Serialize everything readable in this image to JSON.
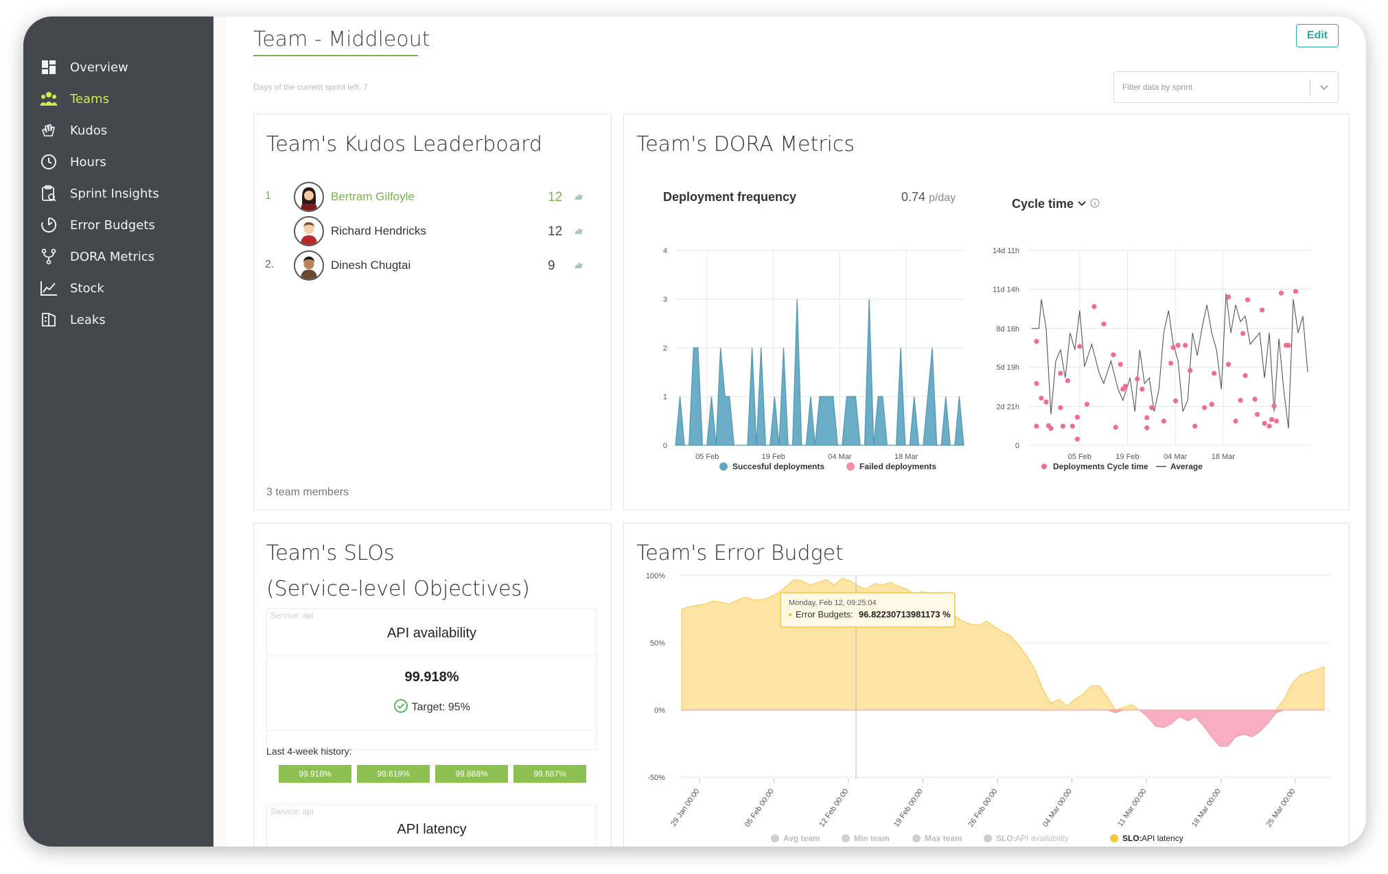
{
  "sidebar": {
    "items": [
      {
        "label": "Overview",
        "icon": "dashboard-icon"
      },
      {
        "label": "Teams",
        "icon": "team-icon",
        "active": true
      },
      {
        "label": "Kudos",
        "icon": "clap-icon"
      },
      {
        "label": "Hours",
        "icon": "clock-icon"
      },
      {
        "label": "Sprint Insights",
        "icon": "clipboard-icon"
      },
      {
        "label": "Error Budgets",
        "icon": "pie-timer-icon"
      },
      {
        "label": "DORA Metrics",
        "icon": "branch-icon"
      },
      {
        "label": "Stock",
        "icon": "line-chart-icon"
      },
      {
        "label": "Leaks",
        "icon": "leak-icon"
      }
    ]
  },
  "header": {
    "title": "Team - Middleout",
    "sprint_left": "Days of the current sprint left: 7",
    "edit_label": "Edit",
    "filter_placeholder": "Filter data by sprint"
  },
  "leaderboard": {
    "title": "Team's Kudos Leaderboard",
    "rows": [
      {
        "rank": "1",
        "name": "Bertram Gilfoyle",
        "count": "12"
      },
      {
        "rank": "",
        "name": "Richard Hendricks",
        "count": "12"
      },
      {
        "rank": "2.",
        "name": "Dinesh Chugtai",
        "count": "9"
      }
    ],
    "members": "3 team members"
  },
  "dora": {
    "title": "Team's DORA Metrics",
    "deploy": {
      "title": "Deployment frequency",
      "value": "0.74",
      "unit": "p/day"
    },
    "cycle": {
      "title": "Cycle time"
    }
  },
  "chart_data": [
    {
      "type": "area",
      "title": "Deployment frequency",
      "x_ticks": [
        "05 Feb",
        "19 Feb",
        "04 Mar",
        "18 Mar"
      ],
      "y_ticks": [
        "0",
        "1",
        "2",
        "3",
        "4"
      ],
      "ylim": [
        0,
        4
      ],
      "series": [
        {
          "name": "Succesful deployments",
          "color": "#5da8c4",
          "values": [
            0,
            1,
            0,
            0,
            2,
            2,
            0,
            0,
            1,
            0,
            2,
            1,
            1,
            0,
            0,
            0,
            0,
            2,
            0,
            2,
            0,
            0,
            1,
            0,
            2,
            0,
            0,
            3,
            0,
            0,
            1,
            0,
            1,
            1,
            1,
            1,
            0,
            0,
            1,
            1,
            1,
            0,
            0,
            3,
            0,
            1,
            1,
            0,
            0,
            0,
            2,
            0,
            0,
            1,
            0,
            0,
            1,
            2,
            0,
            0,
            1,
            0,
            0,
            1,
            0
          ]
        },
        {
          "name": "Failed deployments",
          "color": "#f48fa7",
          "values": []
        }
      ],
      "legend": "bottom"
    },
    {
      "type": "scatter",
      "title": "Cycle time",
      "x_ticks": [
        "05 Feb",
        "19 Feb",
        "04 Mar",
        "18 Mar"
      ],
      "y_ticks": [
        "0",
        "2d 21h",
        "5d 19h",
        "8d 16h",
        "11d 14h",
        "14d 11h"
      ],
      "y_tick_hours": [
        0,
        69,
        139,
        208,
        278,
        347
      ],
      "ylim_hours": [
        0,
        347
      ],
      "series": [
        {
          "name": "Deployments Cycle time",
          "color": "#f06d8f",
          "points": [
            [
              0.02,
              185
            ],
            [
              0.02,
              110
            ],
            [
              0.02,
              34
            ],
            [
              0.04,
              84
            ],
            [
              0.06,
              77
            ],
            [
              0.07,
              35
            ],
            [
              0.08,
              30
            ],
            [
              0.12,
              128
            ],
            [
              0.12,
              67
            ],
            [
              0.13,
              34
            ],
            [
              0.15,
              115
            ],
            [
              0.17,
              34
            ],
            [
              0.19,
              50
            ],
            [
              0.19,
              11
            ],
            [
              0.2,
              176
            ],
            [
              0.23,
              73
            ],
            [
              0.26,
              247
            ],
            [
              0.3,
              216
            ],
            [
              0.34,
              161
            ],
            [
              0.35,
              32
            ],
            [
              0.37,
              144
            ],
            [
              0.38,
              100
            ],
            [
              0.39,
              105
            ],
            [
              0.44,
              118
            ],
            [
              0.46,
              100
            ],
            [
              0.48,
              31
            ],
            [
              0.48,
              49
            ],
            [
              0.5,
              67
            ],
            [
              0.55,
              43
            ],
            [
              0.58,
              146
            ],
            [
              0.59,
              174
            ],
            [
              0.6,
              79
            ],
            [
              0.61,
              178
            ],
            [
              0.64,
              178
            ],
            [
              0.66,
              133
            ],
            [
              0.68,
              34
            ],
            [
              0.72,
              67
            ],
            [
              0.75,
              73
            ],
            [
              0.76,
              128
            ],
            [
              0.82,
              264
            ],
            [
              0.82,
              144
            ],
            [
              0.85,
              43
            ],
            [
              0.87,
              80
            ],
            [
              0.88,
              199
            ],
            [
              0.89,
              124
            ],
            [
              0.9,
              259
            ],
            [
              0.93,
              82
            ],
            [
              0.94,
              55
            ],
            [
              0.96,
              241
            ],
            [
              0.97,
              39
            ],
            [
              0.99,
              34
            ],
            [
              1.0,
              46
            ],
            [
              1.01,
              70
            ],
            [
              1.02,
              43
            ],
            [
              1.04,
              271
            ],
            [
              1.06,
              178
            ],
            [
              1.07,
              178
            ],
            [
              1.1,
              274
            ]
          ]
        },
        {
          "name": "Average",
          "color": "#444",
          "points": [
            [
              0.0,
              208
            ],
            [
              0.03,
              208
            ],
            [
              0.04,
              260
            ],
            [
              0.06,
              208
            ],
            [
              0.08,
              55
            ],
            [
              0.1,
              150
            ],
            [
              0.12,
              170
            ],
            [
              0.14,
              120
            ],
            [
              0.16,
              200
            ],
            [
              0.18,
              170
            ],
            [
              0.2,
              240
            ],
            [
              0.22,
              140
            ],
            [
              0.25,
              180
            ],
            [
              0.28,
              130
            ],
            [
              0.3,
              110
            ],
            [
              0.33,
              150
            ],
            [
              0.36,
              100
            ],
            [
              0.38,
              80
            ],
            [
              0.41,
              120
            ],
            [
              0.43,
              60
            ],
            [
              0.45,
              170
            ],
            [
              0.47,
              110
            ],
            [
              0.49,
              120
            ],
            [
              0.51,
              60
            ],
            [
              0.53,
              100
            ],
            [
              0.55,
              200
            ],
            [
              0.57,
              240
            ],
            [
              0.59,
              180
            ],
            [
              0.61,
              150
            ],
            [
              0.63,
              60
            ],
            [
              0.65,
              80
            ],
            [
              0.67,
              200
            ],
            [
              0.69,
              160
            ],
            [
              0.71,
              210
            ],
            [
              0.73,
              250
            ],
            [
              0.75,
              200
            ],
            [
              0.77,
              170
            ],
            [
              0.79,
              100
            ],
            [
              0.81,
              270
            ],
            [
              0.83,
              200
            ],
            [
              0.85,
              250
            ],
            [
              0.87,
              220
            ],
            [
              0.89,
              230
            ],
            [
              0.91,
              180
            ],
            [
              0.93,
              190
            ],
            [
              0.95,
              200
            ],
            [
              0.97,
              120
            ],
            [
              0.99,
              200
            ],
            [
              1.01,
              60
            ],
            [
              1.03,
              190
            ],
            [
              1.05,
              100
            ],
            [
              1.07,
              30
            ],
            [
              1.09,
              260
            ],
            [
              1.11,
              200
            ],
            [
              1.13,
              230
            ],
            [
              1.15,
              130
            ]
          ]
        }
      ],
      "legend": "bottom"
    },
    {
      "type": "area",
      "title": "Team's Error Budget",
      "x_ticks": [
        "29 Jan 00:00",
        "05 Feb 00:00",
        "12 Feb 00:00",
        "19 Feb 00:00",
        "26 Feb 00:00",
        "04 Mar 00:00",
        "11 Mar 00:00",
        "18 Mar 00:00",
        "25 Mar 00:00"
      ],
      "y_ticks": [
        "-50%",
        "0%",
        "50%",
        "100%"
      ],
      "ylim": [
        -50,
        100
      ],
      "series": [
        {
          "name": "SLO: API latency",
          "service": "Service: api",
          "color": "#f5c842",
          "values": [
            75,
            77,
            78,
            79,
            81,
            80,
            79,
            82,
            84,
            82,
            82,
            84,
            87,
            92,
            97,
            96,
            93,
            95,
            97,
            93,
            98,
            96,
            92,
            90,
            94,
            93,
            95,
            92,
            90,
            86,
            88,
            83,
            85,
            78,
            70,
            66,
            64,
            63,
            66,
            62,
            58,
            55,
            48,
            40,
            30,
            15,
            5,
            8,
            3,
            8,
            12,
            18,
            18,
            10,
            -2,
            2,
            4,
            0,
            -5,
            -12,
            -13,
            -10,
            -5,
            -8,
            -5,
            -12,
            -20,
            -27,
            -27,
            -20,
            -18,
            -20,
            -16,
            -10,
            -2,
            8,
            20,
            26,
            28,
            30,
            32
          ]
        }
      ],
      "legend_entries": [
        {
          "name": "Avg team",
          "active": false
        },
        {
          "name": "Min team",
          "active": false
        },
        {
          "name": "Max team",
          "active": false
        },
        {
          "name": "SLO: API availability",
          "service": "Service: api",
          "active": false
        },
        {
          "name": "SLO: API latency",
          "service": "Service: api",
          "active": true
        }
      ],
      "tooltip": {
        "date": "Monday, Feb 12, 09:25:04",
        "label": "Error Budgets:",
        "value": "96.82230713981173 %"
      }
    }
  ],
  "dora_legend": {
    "success": "Succesful deployments",
    "failed": "Failed deployments",
    "cycle": "Deployments Cycle time",
    "average": "Average"
  },
  "slos": {
    "title_line1": "Team's SLOs",
    "title_line2": "(Service-level Objectives)",
    "items": [
      {
        "service": "Service: api",
        "name": "API availability",
        "value": "99.918%",
        "target": "Target: 95%",
        "history_label": "Last 4-week history:",
        "history": [
          "99.918%",
          "99.619%",
          "99.868%",
          "99.687%"
        ]
      },
      {
        "service": "Service: api",
        "name": "API latency"
      }
    ]
  },
  "error_budget": {
    "title": "Team's Error Budget",
    "tooltip_date": "Monday, Feb 12, 09:25:04",
    "tooltip_label": "Error Budgets:",
    "tooltip_value": "96.82230713981173 %",
    "legend": [
      {
        "name": "Avg team",
        "service": ""
      },
      {
        "name": "Min team",
        "service": ""
      },
      {
        "name": "Max team",
        "service": ""
      },
      {
        "name": "SLO:",
        "name_rest": "API availability",
        "service": "Service:",
        "service_rest": "api"
      },
      {
        "name": "SLO:",
        "name_rest": "API latency",
        "service": "Service:",
        "service_rest": "api"
      }
    ]
  },
  "colors": {
    "accent": "#7db34e",
    "sidebar": "#43474e",
    "active_nav": "#d3e94d",
    "teal": "#2aa8a2"
  }
}
